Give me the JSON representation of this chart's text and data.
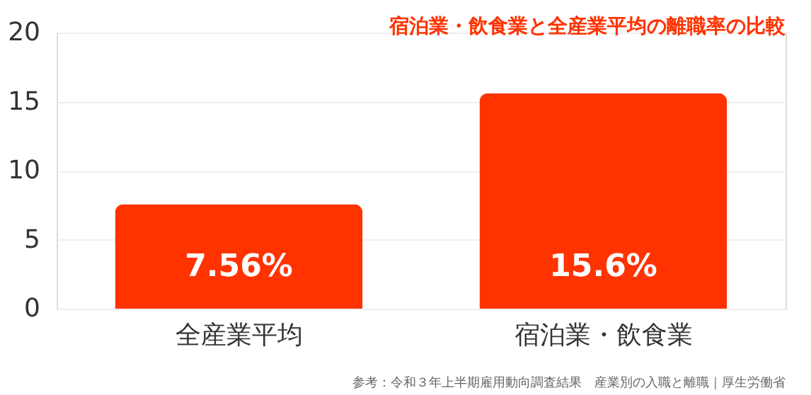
{
  "chart_data": {
    "type": "bar",
    "title": "宿泊業・飲食業と全産業平均の離職率の比較",
    "categories": [
      "全産業平均",
      "宿泊業・飲食業"
    ],
    "values": [
      7.56,
      15.6
    ],
    "value_labels": [
      "7.56%",
      "15.6%"
    ],
    "color": "#ff3300",
    "ylim": [
      0,
      20
    ],
    "yticks": [
      0,
      5,
      10,
      15,
      20
    ],
    "grid": "y",
    "annotations": [
      "参考：令和３年上半期雇用動向調査結果　産業別の入職と離職｜厚生労働省"
    ]
  }
}
